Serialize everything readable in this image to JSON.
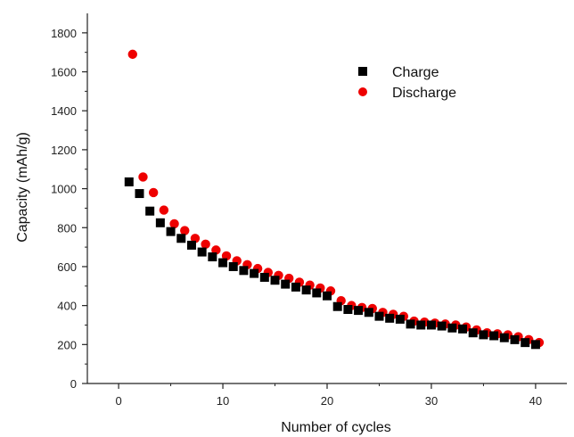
{
  "chart_data": {
    "type": "scatter",
    "xlabel": "Number of cycles",
    "ylabel": "Capacity (mAh/g)",
    "xlim": [
      -3,
      43
    ],
    "ylim": [
      0,
      1900
    ],
    "xticks": [
      "0",
      "10",
      "20",
      "30",
      "40"
    ],
    "yticks": [
      "0",
      "200",
      "400",
      "600",
      "800",
      "1000",
      "1200",
      "1400",
      "1600",
      "1800"
    ],
    "grid": false,
    "legend_position": "top-right",
    "series": [
      {
        "name": "Charge",
        "marker": "square",
        "color": "#000000",
        "x": [
          1,
          2,
          3,
          4,
          5,
          6,
          7,
          8,
          9,
          10,
          11,
          12,
          13,
          14,
          15,
          16,
          17,
          18,
          19,
          20,
          21,
          22,
          23,
          24,
          25,
          26,
          27,
          28,
          29,
          30,
          31,
          32,
          33,
          34,
          35,
          36,
          37,
          38,
          39,
          40
        ],
        "y": [
          1035,
          975,
          885,
          825,
          780,
          745,
          710,
          675,
          650,
          620,
          600,
          580,
          565,
          545,
          530,
          510,
          495,
          480,
          465,
          450,
          395,
          380,
          375,
          365,
          345,
          335,
          330,
          305,
          300,
          300,
          295,
          285,
          280,
          260,
          250,
          245,
          235,
          225,
          210,
          200
        ]
      },
      {
        "name": "Discharge",
        "marker": "circle",
        "color": "#ee0000",
        "x": [
          1,
          2,
          3,
          4,
          5,
          6,
          7,
          8,
          9,
          10,
          11,
          12,
          13,
          14,
          15,
          16,
          17,
          18,
          19,
          20,
          21,
          22,
          23,
          24,
          25,
          26,
          27,
          28,
          29,
          30,
          31,
          32,
          33,
          34,
          35,
          36,
          37,
          38,
          39,
          40
        ],
        "y": [
          1690,
          1060,
          980,
          890,
          820,
          785,
          745,
          715,
          685,
          655,
          630,
          610,
          590,
          570,
          555,
          540,
          520,
          505,
          490,
          475,
          425,
          400,
          390,
          385,
          365,
          355,
          345,
          320,
          315,
          310,
          305,
          300,
          290,
          275,
          260,
          255,
          250,
          240,
          225,
          210
        ]
      }
    ]
  }
}
